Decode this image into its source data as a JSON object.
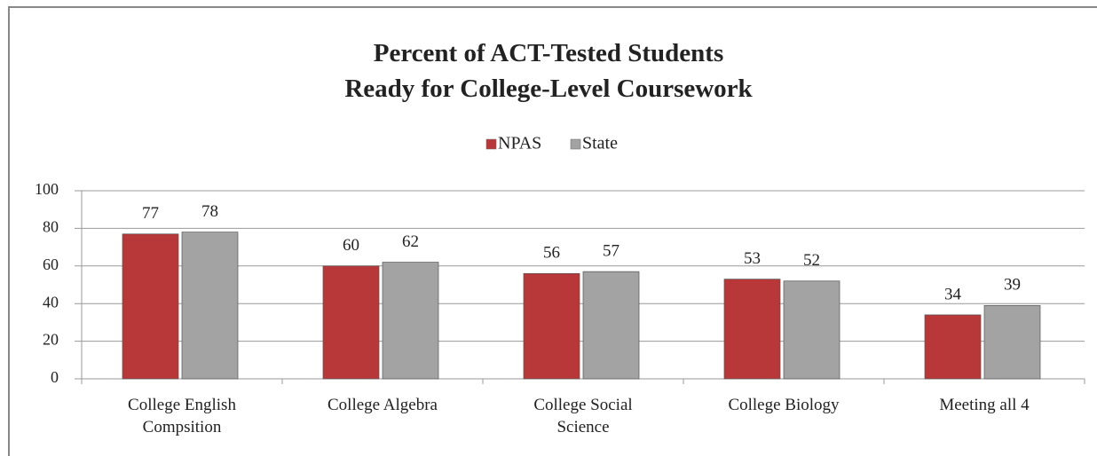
{
  "chart_data": {
    "type": "bar",
    "title": "Percent of ACT-Tested Students\nReady for College-Level Coursework",
    "categories": [
      "College English\nCompsition",
      "College Algebra",
      "College Social\nScience",
      "College Biology",
      "Meeting all 4"
    ],
    "series": [
      {
        "name": "NPAS",
        "color": "#b8383a",
        "values": [
          77,
          60,
          56,
          53,
          34
        ]
      },
      {
        "name": "State",
        "color": "#a3a3a3",
        "values": [
          78,
          62,
          57,
          52,
          39
        ]
      }
    ],
    "ylim": [
      0,
      100
    ],
    "yticks": [
      0,
      20,
      40,
      60,
      80,
      100
    ],
    "grid": true,
    "legend": "top"
  }
}
